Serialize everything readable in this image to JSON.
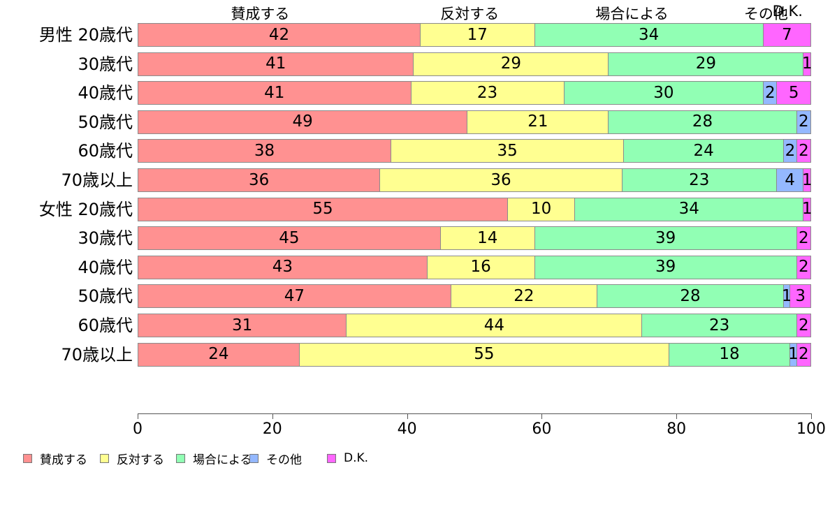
{
  "chart_data": {
    "type": "bar",
    "orientation": "horizontal",
    "stacked": true,
    "title": "",
    "xlabel": "",
    "ylabel": "",
    "xlim": [
      0,
      100
    ],
    "x_ticks": [
      0,
      20,
      40,
      60,
      80,
      100
    ],
    "grid": false,
    "legend_position": "bottom-left",
    "series_names": [
      "賛成する",
      "反対する",
      "場合による",
      "その他",
      "D.K."
    ],
    "series_colors": [
      "#FF9191",
      "#FFFF91",
      "#91FFB4",
      "#94B8FF",
      "#FF66FF"
    ],
    "column_headers": [
      {
        "label": "賛成する",
        "x_percent": 18.2
      },
      {
        "label": "反対する",
        "x_percent": 49.3
      },
      {
        "label": "場合による",
        "x_percent": 73.4
      },
      {
        "label": "その他",
        "x_percent": 93.3
      },
      {
        "label": "D.K.",
        "x_percent": 96.5
      }
    ],
    "rows": [
      {
        "label": "男性 20歳代",
        "values": [
          42,
          17,
          34,
          0,
          7
        ]
      },
      {
        "label": "30歳代",
        "values": [
          41,
          29,
          29,
          0,
          1
        ]
      },
      {
        "label": "40歳代",
        "values": [
          41,
          23,
          30,
          2,
          5
        ]
      },
      {
        "label": "50歳代",
        "values": [
          49,
          21,
          28,
          2,
          0
        ]
      },
      {
        "label": "60歳代",
        "values": [
          38,
          35,
          24,
          2,
          2
        ]
      },
      {
        "label": "70歳以上",
        "values": [
          36,
          36,
          23,
          4,
          1
        ]
      },
      {
        "label": "女性 20歳代",
        "values": [
          55,
          10,
          34,
          0,
          1
        ]
      },
      {
        "label": "30歳代",
        "values": [
          45,
          14,
          39,
          0,
          2
        ]
      },
      {
        "label": "40歳代",
        "values": [
          43,
          16,
          39,
          0,
          2
        ]
      },
      {
        "label": "50歳代",
        "values": [
          47,
          22,
          28,
          1,
          3
        ]
      },
      {
        "label": "60歳代",
        "values": [
          31,
          44,
          23,
          0,
          2
        ]
      },
      {
        "label": "70歳以上",
        "values": [
          24,
          55,
          18,
          1,
          2
        ]
      }
    ],
    "legend": [
      "賛成する",
      "反対する",
      "場合による",
      "その他",
      "D.K."
    ]
  },
  "colors": {
    "segment_border": "#8B8B8B",
    "axis": "#555555",
    "text": "#000000",
    "background": "#FFFFFF"
  }
}
